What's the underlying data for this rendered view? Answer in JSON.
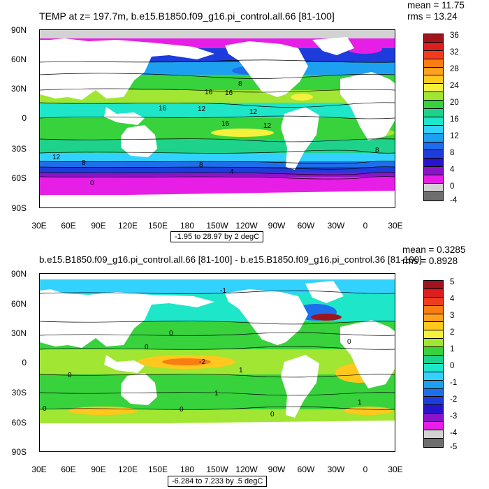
{
  "panels": [
    {
      "title": "TEMP at z= 197.7m, b.e15.B1850.f09_g16.pi_control.all.66 [81-100]",
      "stats": {
        "mean": "mean = 11.75",
        "rms": "rms = 13.24"
      },
      "range_label": "-1.95 to 28.97 by 2 degC",
      "y_ticks": [
        "90N",
        "60N",
        "30N",
        "0",
        "30S",
        "60S",
        "90S"
      ],
      "x_ticks": [
        "30E",
        "60E",
        "90E",
        "120E",
        "150E",
        "180",
        "150W",
        "120W",
        "90W",
        "60W",
        "30W",
        "0",
        "30E"
      ],
      "colorbar": {
        "labels": [
          "36",
          "32",
          "28",
          "24",
          "20",
          "16",
          "12",
          "8",
          "4",
          "0",
          "-4"
        ],
        "colors": [
          "#a0141e",
          "#dc1e1e",
          "#f03c1e",
          "#fa7d14",
          "#ffa01e",
          "#ffc81e",
          "#f5f03c",
          "#a0e632",
          "#37d23c",
          "#1ed28c",
          "#1ee6c8",
          "#32d2ff",
          "#1ea0f0",
          "#1e6eeb",
          "#1e3cdc",
          "#2814cd",
          "#8c14c8",
          "#e61ee6",
          "#d2d2d2",
          "#6e6e6e"
        ]
      },
      "contour_labels": [
        "16",
        "16",
        "12",
        "16",
        "12",
        "12",
        "8",
        "8",
        "4",
        "0",
        "8",
        "8",
        "16",
        "12"
      ],
      "chart_data": {
        "type": "heatmap",
        "variable": "TEMP",
        "depth": "z= 197.7m",
        "run": "b.e15.B1850.f09_g16.pi_control.all.66",
        "years": "[81-100]",
        "units": "degC",
        "min": -1.95,
        "max": 28.97,
        "interval": 2,
        "mean": 11.75,
        "rms": 13.24,
        "colorbar_levels": [
          -4,
          0,
          4,
          8,
          12,
          16,
          20,
          24,
          28,
          32,
          36
        ],
        "approx_zonal_profile": [
          {
            "lat": 60,
            "value": 6
          },
          {
            "lat": 30,
            "value": 15
          },
          {
            "lat": 15,
            "value": 17
          },
          {
            "lat": 0,
            "value": 13
          },
          {
            "lat": -15,
            "value": 18
          },
          {
            "lat": -30,
            "value": 14
          },
          {
            "lat": -45,
            "value": 7
          },
          {
            "lat": -60,
            "value": 0.5
          }
        ]
      }
    },
    {
      "title": "b.e15.B1850.f09_g16.pi_control.all.66 [81-100] - b.e15.B1850.f09_g16.pi_control.36 [81-100]",
      "stats": {
        "mean": "mean = 0.3285",
        "rms": "rms = 0.8928"
      },
      "range_label": "-6.284 to 7.233 by .5 degC",
      "y_ticks": [
        "90N",
        "60N",
        "30N",
        "0",
        "30S",
        "60S",
        "90S"
      ],
      "x_ticks": [
        "30E",
        "60E",
        "90E",
        "120E",
        "150E",
        "180",
        "150W",
        "120W",
        "90W",
        "60W",
        "30W",
        "0",
        "30E"
      ],
      "colorbar": {
        "labels": [
          "5",
          "4",
          "3",
          "2",
          "1",
          "0",
          "-1",
          "-2",
          "-3",
          "-4",
          "-5"
        ],
        "colors": [
          "#a0141e",
          "#dc1e1e",
          "#f03c1e",
          "#fa7d14",
          "#ffa01e",
          "#ffc81e",
          "#f5f03c",
          "#a0e632",
          "#37d23c",
          "#1ed28c",
          "#1ee6c8",
          "#32d2ff",
          "#1ea0f0",
          "#1e6eeb",
          "#1e3cdc",
          "#2814cd",
          "#8c14c8",
          "#e61ee6",
          "#d2d2d2",
          "#6e6e6e"
        ]
      },
      "contour_labels": [
        "-1",
        "0",
        "0",
        "-2",
        "1",
        "0",
        "1",
        "0",
        "0",
        "0",
        "1",
        "0"
      ],
      "chart_data": {
        "type": "heatmap",
        "variable": "TEMP difference",
        "run_a": "b.e15.B1850.f09_g16.pi_control.all.66 [81-100]",
        "run_b": "b.e15.B1850.f09_g16.pi_control.36 [81-100]",
        "units": "degC",
        "min": -6.284,
        "max": 7.233,
        "interval": 0.5,
        "mean": 0.3285,
        "rms": 0.8928,
        "colorbar_levels": [
          -5,
          -4,
          -3,
          -2,
          -1,
          0,
          1,
          2,
          3,
          4,
          5
        ],
        "approx_zonal_profile": [
          {
            "lat": 80,
            "value": -0.5
          },
          {
            "lat": 50,
            "value": 0.5
          },
          {
            "lat": 30,
            "value": 0.5
          },
          {
            "lat": 0,
            "value": 1
          },
          {
            "lat": -15,
            "value": 0.5
          },
          {
            "lat": -30,
            "value": 0.5
          },
          {
            "lat": -50,
            "value": 0.5
          },
          {
            "lat": -60,
            "value": 0
          }
        ]
      }
    }
  ]
}
